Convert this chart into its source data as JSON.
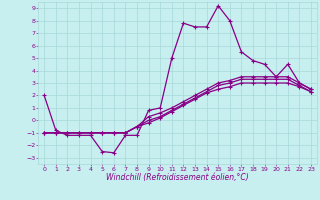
{
  "xlabel": "Windchill (Refroidissement éolien,°C)",
  "xlim": [
    -0.5,
    23.5
  ],
  "ylim": [
    -3.5,
    9.5
  ],
  "xticks": [
    0,
    1,
    2,
    3,
    4,
    5,
    6,
    7,
    8,
    9,
    10,
    11,
    12,
    13,
    14,
    15,
    16,
    17,
    18,
    19,
    20,
    21,
    22,
    23
  ],
  "yticks": [
    -3,
    -2,
    -1,
    0,
    1,
    2,
    3,
    4,
    5,
    6,
    7,
    8,
    9
  ],
  "background_color": "#c8efef",
  "grid_color": "#a8d8d8",
  "line_color": "#880088",
  "series": [
    [
      2.0,
      -0.8,
      -1.2,
      -1.2,
      -1.2,
      -2.5,
      -2.6,
      -1.2,
      -1.2,
      0.8,
      1.0,
      5.0,
      7.8,
      7.5,
      7.5,
      9.2,
      8.0,
      5.5,
      4.8,
      4.5,
      3.5,
      4.5,
      3.0,
      2.5
    ],
    [
      -1.0,
      -1.0,
      -1.0,
      -1.0,
      -1.0,
      -1.0,
      -1.0,
      -1.0,
      -0.5,
      0.3,
      0.6,
      1.0,
      1.5,
      2.0,
      2.5,
      3.0,
      3.2,
      3.5,
      3.5,
      3.5,
      3.5,
      3.5,
      3.0,
      2.5
    ],
    [
      -1.0,
      -1.0,
      -1.0,
      -1.0,
      -1.0,
      -1.0,
      -1.0,
      -1.0,
      -0.5,
      0.0,
      0.3,
      0.8,
      1.3,
      1.8,
      2.3,
      2.8,
      3.0,
      3.3,
      3.3,
      3.3,
      3.3,
      3.3,
      2.8,
      2.3
    ],
    [
      -1.0,
      -1.0,
      -1.0,
      -1.0,
      -1.0,
      -1.0,
      -1.0,
      -1.0,
      -0.5,
      -0.2,
      0.2,
      0.7,
      1.2,
      1.7,
      2.2,
      2.5,
      2.7,
      3.0,
      3.0,
      3.0,
      3.0,
      3.0,
      2.7,
      2.3
    ]
  ],
  "marker": "+",
  "markersize": 3,
  "markeredgewidth": 0.8,
  "linewidth": 0.9,
  "tick_fontsize": 4.5,
  "label_fontsize": 5.5
}
